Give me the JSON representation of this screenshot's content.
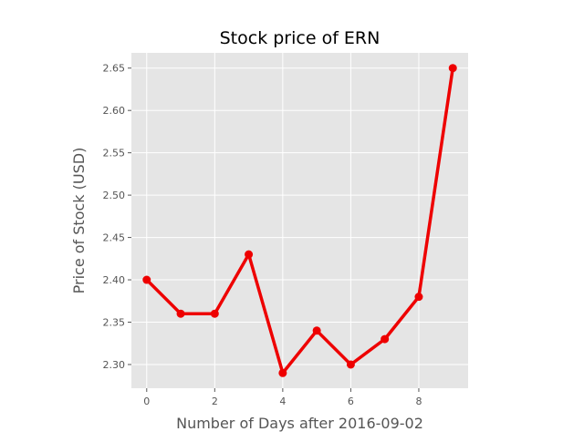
{
  "chart_data": {
    "type": "line",
    "title": "Stock price of ERN",
    "xlabel": "Number of Days after 2016-09-02",
    "ylabel": "Price of Stock (USD)",
    "x": [
      0,
      1,
      2,
      3,
      4,
      5,
      6,
      7,
      8,
      9
    ],
    "series": [
      {
        "values": [
          2.4,
          2.36,
          2.36,
          2.43,
          2.29,
          2.34,
          2.3,
          2.33,
          2.38,
          2.65
        ],
        "color": "#ee0000",
        "marker": "circle"
      }
    ],
    "xlim": [
      -0.45,
      9.45
    ],
    "ylim": [
      2.272,
      2.668
    ],
    "xticks": [
      0,
      2,
      4,
      6,
      8
    ],
    "xtick_labels": [
      "0",
      "2",
      "4",
      "6",
      "8"
    ],
    "yticks": [
      2.3,
      2.35,
      2.4,
      2.45,
      2.5,
      2.55,
      2.6,
      2.65
    ],
    "ytick_labels": [
      "2.30",
      "2.35",
      "2.40",
      "2.45",
      "2.50",
      "2.55",
      "2.60",
      "2.65"
    ],
    "grid": true,
    "style": "ggplot",
    "colors": {
      "plot_background": "#e5e5e5",
      "grid": "#ffffff",
      "line": "#ee0000",
      "tick_text": "#555555",
      "axis_label_text": "#555555",
      "title_text": "#000000"
    }
  }
}
